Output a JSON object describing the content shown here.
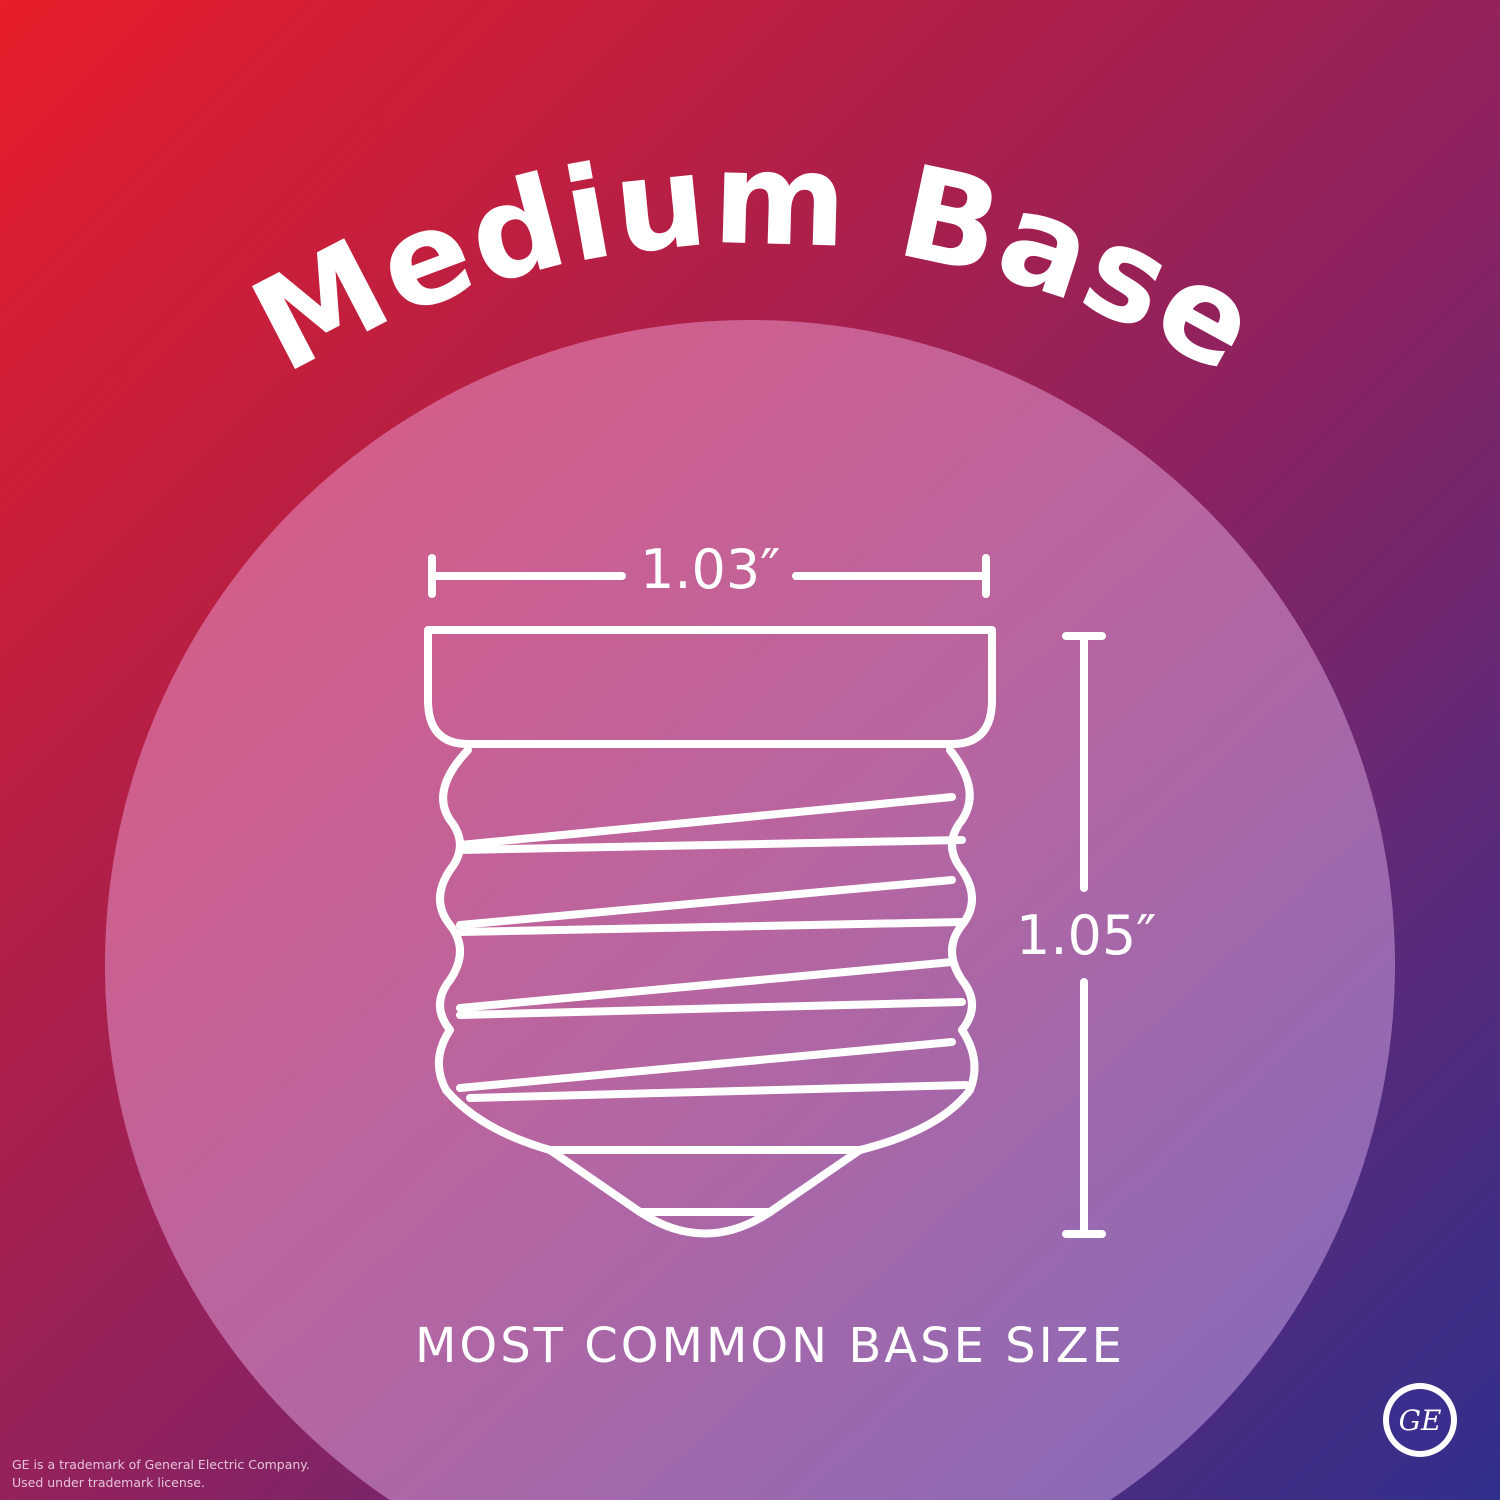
{
  "title": "Medium Base",
  "width_label": "1.03″",
  "height_label": "1.05″",
  "caption": "MOST COMMON BASE SIZE",
  "trademark": {
    "line1": "GE is a trademark of General Electric Company.",
    "line2": "Used under trademark license."
  },
  "logo": "GE",
  "colors": {
    "circle_top": "#d95c86",
    "circle_bottom": "#8a6bb8",
    "bg_top_left": "#e81e2a",
    "bg_bottom_right": "#302f8c"
  }
}
